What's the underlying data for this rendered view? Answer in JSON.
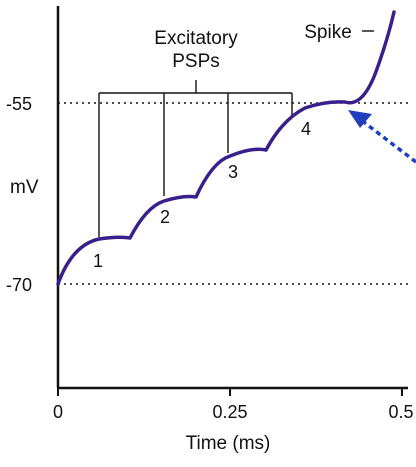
{
  "figure": {
    "y_axis_label": "mV",
    "x_axis_label": "Time (ms)",
    "y_ticks": [
      "-55",
      "-70"
    ],
    "x_ticks": [
      "0",
      "0.25",
      "0.5"
    ],
    "bracket_label_line1": "Excitatory",
    "bracket_label_line2": "PSPs",
    "spike_label": "Spike",
    "psp_labels": [
      "1",
      "2",
      "3",
      "4"
    ],
    "threshold_mV": -55,
    "resting_mV": -70,
    "x_range_ms": [
      0,
      0.5
    ],
    "colors": {
      "trace": "#3a1f8c",
      "arrow": "#1f3fbf",
      "axes": "#111111"
    }
  }
}
